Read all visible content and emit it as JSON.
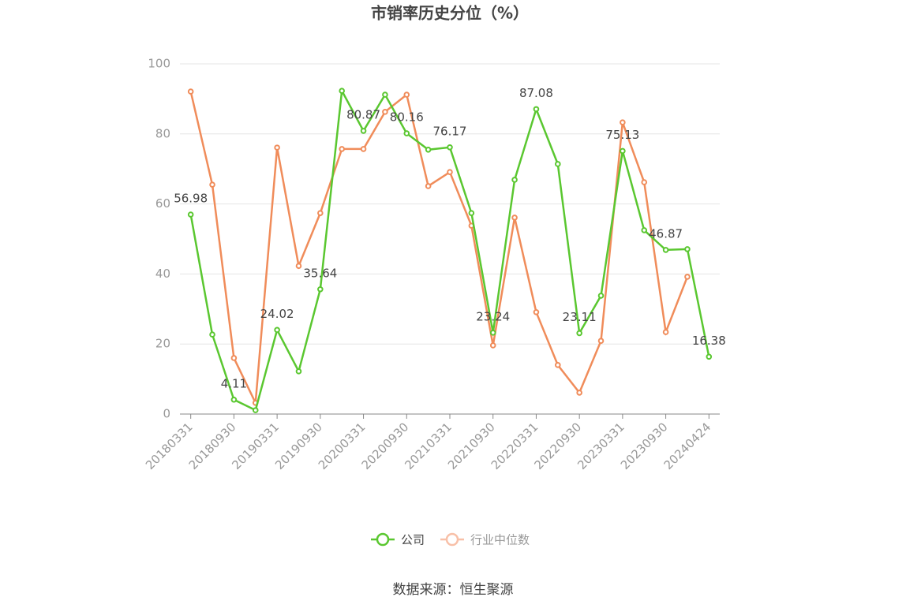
{
  "chart_data": {
    "type": "line",
    "title": "市销率历史分位（%）",
    "categories": [
      "20180331",
      null,
      "20180930",
      null,
      "20190331",
      null,
      "20190930",
      null,
      "20200331",
      null,
      "20200930",
      null,
      "20210331",
      null,
      "20210930",
      null,
      "20220331",
      null,
      "20220930",
      null,
      "20230331",
      null,
      "20230930",
      null,
      "20240424"
    ],
    "series": [
      {
        "name": "公司",
        "color": "#5ac730",
        "values": [
          56.98,
          22.7,
          4.11,
          1.1,
          24.02,
          12.2,
          35.64,
          92.3,
          80.87,
          91.2,
          80.16,
          75.5,
          76.17,
          57.4,
          23.24,
          66.9,
          87.08,
          71.4,
          23.11,
          33.8,
          75.13,
          52.5,
          46.87,
          47.1,
          16.38
        ],
        "value_labels": [
          "56.98",
          null,
          "4.11",
          null,
          "24.02",
          null,
          "35.64",
          null,
          "80.87",
          null,
          "80.16",
          null,
          "76.17",
          null,
          "23.24",
          null,
          "87.08",
          null,
          "23.11",
          null,
          "75.13",
          null,
          "46.87",
          null,
          "16.38"
        ]
      },
      {
        "name": "行业中位数",
        "color": "#f08c5a",
        "values": [
          92.1,
          65.5,
          16.0,
          3.2,
          76.1,
          42.3,
          57.4,
          75.7,
          75.7,
          86.3,
          91.2,
          65.1,
          69.1,
          53.8,
          19.6,
          56.1,
          29.1,
          14.0,
          6.1,
          20.9,
          83.3,
          66.2,
          23.4,
          39.2,
          null
        ]
      }
    ],
    "ylim": [
      0,
      100
    ],
    "yticks": [
      0,
      20,
      40,
      60,
      80,
      100
    ],
    "grid": true,
    "source": "数据来源：恒生聚源"
  }
}
